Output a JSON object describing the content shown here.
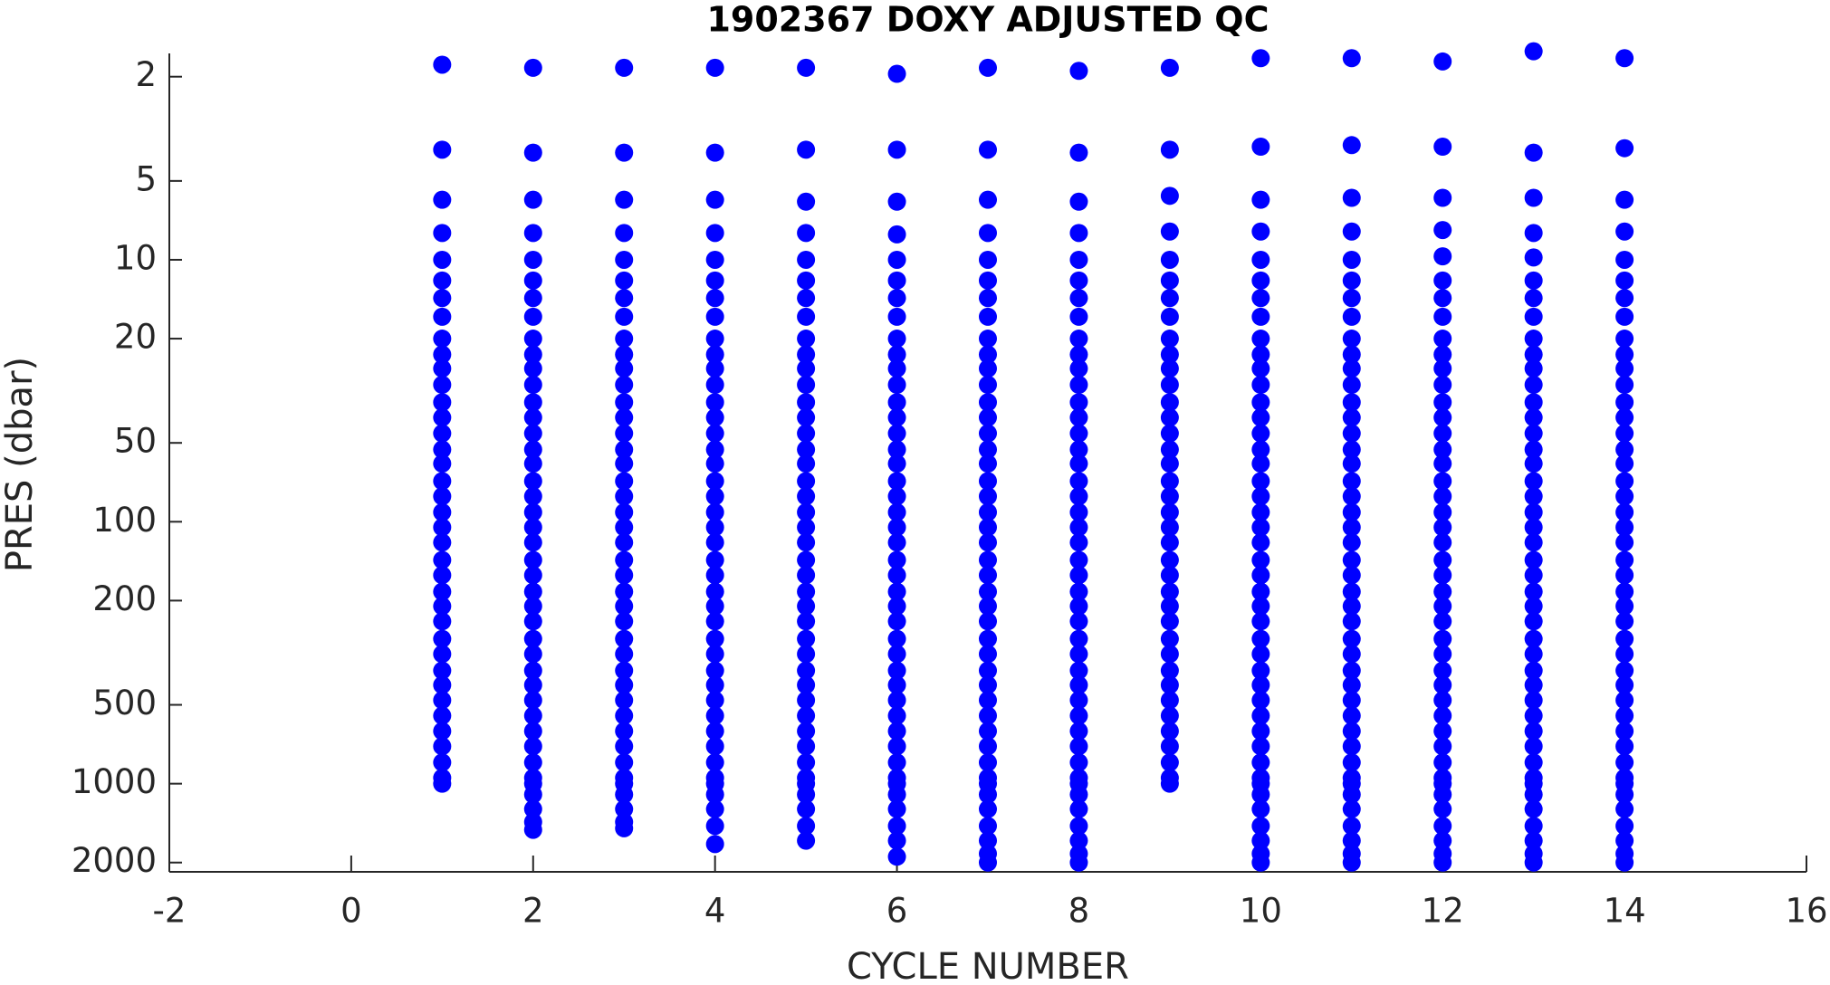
{
  "chart_data": {
    "type": "scatter",
    "title": "1902367  DOXY ADJUSTED QC",
    "x_label": "CYCLE NUMBER",
    "y_label": "PRES (dbar)",
    "xlim": [
      -2,
      16
    ],
    "xticks": [
      -2,
      0,
      2,
      4,
      6,
      8,
      10,
      12,
      14,
      16
    ],
    "ylim": [
      1.63,
      2170
    ],
    "yticks": [
      2,
      5,
      10,
      20,
      50,
      100,
      200,
      500,
      1000,
      2000
    ],
    "y_log": true,
    "y_reverse": true,
    "grid": false,
    "color": "#0000ff",
    "series": [
      {
        "x": 1,
        "values": [
          1.8,
          3.8,
          5.9,
          7.9,
          10,
          12,
          14,
          16.5,
          20,
          23,
          26,
          30,
          35,
          40,
          46,
          53,
          60,
          70,
          80,
          92,
          105,
          120,
          140,
          160,
          185,
          210,
          240,
          280,
          320,
          370,
          420,
          480,
          550,
          630,
          720,
          830,
          950,
          1000
        ]
      },
      {
        "x": 2,
        "values": [
          1.85,
          3.9,
          5.9,
          7.9,
          10,
          12,
          14,
          16.5,
          20,
          23,
          26,
          30,
          35,
          40,
          46,
          53,
          60,
          70,
          80,
          92,
          105,
          120,
          140,
          160,
          185,
          210,
          240,
          280,
          320,
          370,
          420,
          480,
          550,
          630,
          720,
          830,
          950,
          1000,
          1100,
          1250,
          1400,
          1500
        ]
      },
      {
        "x": 3,
        "values": [
          1.85,
          3.9,
          5.9,
          7.9,
          10,
          12,
          14,
          16.5,
          20,
          23,
          26,
          30,
          35,
          40,
          46,
          53,
          60,
          70,
          80,
          92,
          105,
          120,
          140,
          160,
          185,
          210,
          240,
          280,
          320,
          370,
          420,
          480,
          550,
          630,
          720,
          830,
          950,
          1000,
          1100,
          1250,
          1400,
          1480
        ]
      },
      {
        "x": 4,
        "values": [
          1.85,
          3.9,
          5.9,
          7.9,
          10,
          12,
          14,
          16.5,
          20,
          23,
          26,
          30,
          35,
          40,
          46,
          53,
          60,
          70,
          80,
          92,
          105,
          120,
          140,
          160,
          185,
          210,
          240,
          280,
          320,
          370,
          420,
          480,
          550,
          630,
          720,
          830,
          950,
          1000,
          1100,
          1250,
          1450,
          1700
        ]
      },
      {
        "x": 5,
        "values": [
          1.85,
          3.8,
          6,
          7.9,
          10,
          12,
          14,
          16.5,
          20,
          23,
          26,
          30,
          35,
          40,
          46,
          53,
          60,
          70,
          80,
          92,
          105,
          120,
          140,
          160,
          185,
          210,
          240,
          280,
          320,
          370,
          420,
          480,
          550,
          630,
          720,
          830,
          950,
          1000,
          1100,
          1250,
          1450,
          1650
        ]
      },
      {
        "x": 6,
        "values": [
          1.95,
          3.8,
          6,
          8,
          10,
          12,
          14,
          16.5,
          20,
          23,
          26,
          30,
          35,
          40,
          46,
          53,
          60,
          70,
          80,
          92,
          105,
          120,
          140,
          160,
          185,
          210,
          240,
          280,
          320,
          370,
          420,
          480,
          550,
          630,
          720,
          830,
          950,
          1000,
          1100,
          1250,
          1450,
          1650,
          1900
        ]
      },
      {
        "x": 7,
        "values": [
          1.85,
          3.8,
          5.9,
          7.9,
          10,
          12,
          14,
          16.5,
          20,
          23,
          26,
          30,
          35,
          40,
          46,
          53,
          60,
          70,
          80,
          92,
          105,
          120,
          140,
          160,
          185,
          210,
          240,
          280,
          320,
          370,
          420,
          480,
          550,
          630,
          720,
          830,
          950,
          1000,
          1100,
          1250,
          1450,
          1650,
          1850,
          2000
        ]
      },
      {
        "x": 8,
        "values": [
          1.9,
          3.9,
          6,
          7.9,
          10,
          12,
          14,
          16.5,
          20,
          23,
          26,
          30,
          35,
          40,
          46,
          53,
          60,
          70,
          80,
          92,
          105,
          120,
          140,
          160,
          185,
          210,
          240,
          280,
          320,
          370,
          420,
          480,
          550,
          630,
          720,
          830,
          950,
          1000,
          1100,
          1250,
          1450,
          1650,
          1850,
          2000
        ]
      },
      {
        "x": 9,
        "values": [
          1.85,
          3.8,
          5.7,
          7.8,
          10,
          12,
          14,
          16.5,
          20,
          23,
          26,
          30,
          35,
          40,
          46,
          53,
          60,
          70,
          80,
          92,
          105,
          120,
          140,
          160,
          185,
          210,
          240,
          280,
          320,
          370,
          420,
          480,
          550,
          630,
          720,
          830,
          950,
          1000
        ]
      },
      {
        "x": 10,
        "values": [
          1.7,
          3.7,
          5.9,
          7.8,
          10,
          12,
          14,
          16.5,
          20,
          23,
          26,
          30,
          35,
          40,
          46,
          53,
          60,
          70,
          80,
          92,
          105,
          120,
          140,
          160,
          185,
          210,
          240,
          280,
          320,
          370,
          420,
          480,
          550,
          630,
          720,
          830,
          950,
          1000,
          1100,
          1250,
          1450,
          1650,
          1850,
          2000
        ]
      },
      {
        "x": 11,
        "values": [
          1.7,
          3.65,
          5.8,
          7.8,
          10,
          12,
          14,
          16.5,
          20,
          23,
          26,
          30,
          35,
          40,
          46,
          53,
          60,
          70,
          80,
          92,
          105,
          120,
          140,
          160,
          185,
          210,
          240,
          280,
          320,
          370,
          420,
          480,
          550,
          630,
          720,
          830,
          950,
          1000,
          1100,
          1250,
          1450,
          1650,
          1850,
          2000
        ]
      },
      {
        "x": 12,
        "values": [
          1.75,
          3.7,
          5.8,
          7.7,
          9.7,
          12,
          14,
          16.5,
          20,
          23,
          26,
          30,
          35,
          40,
          46,
          53,
          60,
          70,
          80,
          92,
          105,
          120,
          140,
          160,
          185,
          210,
          240,
          280,
          320,
          370,
          420,
          480,
          550,
          630,
          720,
          830,
          950,
          1000,
          1100,
          1250,
          1450,
          1650,
          1850,
          2000
        ]
      },
      {
        "x": 13,
        "values": [
          1.6,
          3.9,
          5.8,
          7.9,
          9.8,
          12,
          14,
          16.5,
          20,
          23,
          26,
          30,
          35,
          40,
          46,
          53,
          60,
          70,
          80,
          92,
          105,
          120,
          140,
          160,
          185,
          210,
          240,
          280,
          320,
          370,
          420,
          480,
          550,
          630,
          720,
          830,
          950,
          1000,
          1100,
          1250,
          1450,
          1650,
          1850,
          2000
        ]
      },
      {
        "x": 14,
        "values": [
          1.7,
          3.75,
          5.9,
          7.8,
          10,
          12,
          14,
          16.5,
          20,
          23,
          26,
          30,
          35,
          40,
          46,
          53,
          60,
          70,
          80,
          92,
          105,
          120,
          140,
          160,
          185,
          210,
          240,
          280,
          320,
          370,
          420,
          480,
          550,
          630,
          720,
          830,
          950,
          1000,
          1100,
          1250,
          1450,
          1650,
          1850,
          2000
        ]
      }
    ]
  }
}
